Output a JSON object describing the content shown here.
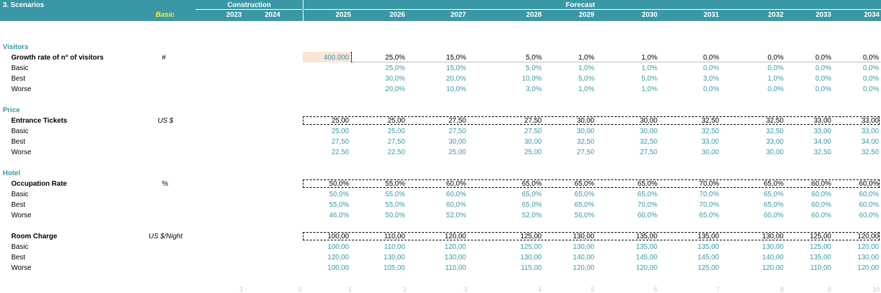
{
  "header": {
    "title": "3. Scenarios",
    "scenario": "Basic",
    "groups": {
      "construction": "Construction",
      "forecast": "Forecast"
    },
    "years": [
      "2023",
      "2024",
      "2025",
      "2026",
      "2027",
      "2028",
      "2029",
      "2030",
      "2031",
      "2032",
      "2033",
      "2034"
    ]
  },
  "sections": {
    "visitors": {
      "title": "Visitors",
      "main": {
        "label": "Growth rate of n° of visitors",
        "unit": "#",
        "values": [
          "400.000",
          "25,0%",
          "15,0%",
          "5,0%",
          "1,0%",
          "1,0%",
          "0,0%",
          "0,0%",
          "0,0%",
          "0,0%"
        ]
      },
      "basic": {
        "label": "Basic",
        "values": [
          "",
          "25,0%",
          "15,0%",
          "5,0%",
          "1,0%",
          "1,0%",
          "0,0%",
          "0,0%",
          "0,0%",
          "0,0%"
        ]
      },
      "best": {
        "label": "Best",
        "values": [
          "",
          "30,0%",
          "20,0%",
          "10,0%",
          "5,0%",
          "5,0%",
          "3,0%",
          "1,0%",
          "0,0%",
          "0,0%"
        ]
      },
      "worse": {
        "label": "Worse",
        "values": [
          "",
          "20,0%",
          "10,0%",
          "3,0%",
          "1,0%",
          "1,0%",
          "0,0%",
          "0,0%",
          "0,0%",
          "0,0%"
        ]
      }
    },
    "price": {
      "title": "Price",
      "main": {
        "label": "Entrance Tickets",
        "unit": "US $",
        "values": [
          "25,00",
          "25,00",
          "27,50",
          "27,50",
          "30,00",
          "30,00",
          "32,50",
          "32,50",
          "33,00",
          "33,00"
        ]
      },
      "basic": {
        "label": "Basic",
        "values": [
          "25,00",
          "25,00",
          "27,50",
          "27,50",
          "30,00",
          "30,00",
          "32,50",
          "32,50",
          "33,00",
          "33,00"
        ]
      },
      "best": {
        "label": "Best",
        "values": [
          "27,50",
          "27,50",
          "30,00",
          "30,00",
          "32,50",
          "32,50",
          "33,00",
          "33,00",
          "34,00",
          "34,00"
        ]
      },
      "worse": {
        "label": "Worse",
        "values": [
          "22,50",
          "22,50",
          "25,00",
          "25,00",
          "27,50",
          "27,50",
          "30,00",
          "30,00",
          "32,50",
          "32,50"
        ]
      }
    },
    "hotel": {
      "title": "Hotel",
      "main": {
        "label": "Occupation Rate",
        "unit": "%",
        "values": [
          "50,0%",
          "55,0%",
          "60,0%",
          "65,0%",
          "65,0%",
          "65,0%",
          "70,0%",
          "65,0%",
          "60,0%",
          "60,0%"
        ]
      },
      "basic": {
        "label": "Basic",
        "values": [
          "50,0%",
          "55,0%",
          "60,0%",
          "65,0%",
          "65,0%",
          "65,0%",
          "70,0%",
          "65,0%",
          "60,0%",
          "60,0%"
        ]
      },
      "best": {
        "label": "Best",
        "values": [
          "55,0%",
          "55,0%",
          "60,0%",
          "65,0%",
          "65,0%",
          "70,0%",
          "70,0%",
          "65,0%",
          "60,0%",
          "60,0%"
        ]
      },
      "worse": {
        "label": "Worse",
        "values": [
          "46,0%",
          "50,0%",
          "52,0%",
          "52,0%",
          "56,0%",
          "60,0%",
          "65,0%",
          "60,0%",
          "60,0%",
          "60,0%"
        ]
      }
    },
    "room": {
      "main": {
        "label": "Room Charge",
        "unit": "US $/Night",
        "values": [
          "100,00",
          "110,00",
          "120,00",
          "125,00",
          "130,00",
          "135,00",
          "135,00",
          "130,00",
          "125,00",
          "120,00"
        ]
      },
      "basic": {
        "label": "Basic",
        "values": [
          "100,00",
          "110,00",
          "120,00",
          "125,00",
          "130,00",
          "135,00",
          "135,00",
          "130,00",
          "125,00",
          "120,00"
        ]
      },
      "best": {
        "label": "Best",
        "values": [
          "120,00",
          "130,00",
          "130,00",
          "130,00",
          "140,00",
          "145,00",
          "145,00",
          "140,00",
          "135,00",
          "130,00"
        ]
      },
      "worse": {
        "label": "Worse",
        "values": [
          "100,00",
          "105,00",
          "110,00",
          "115,00",
          "120,00",
          "120,00",
          "125,00",
          "120,00",
          "110,00",
          "120,00"
        ]
      }
    }
  },
  "footer_index": [
    "1",
    "2",
    "1",
    "2",
    "3",
    "4",
    "5",
    "6",
    "7",
    "8",
    "9",
    "10"
  ]
}
